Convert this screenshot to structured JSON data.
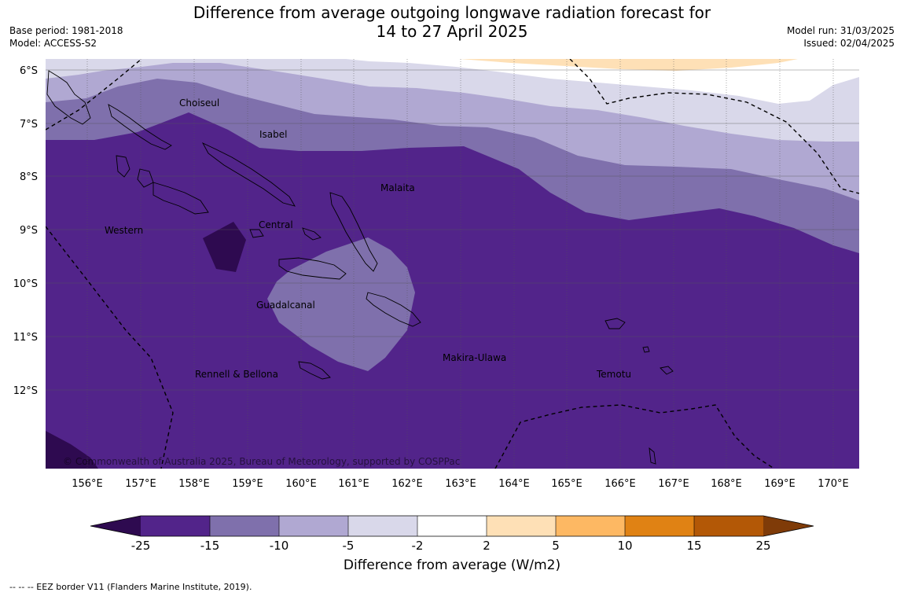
{
  "title_line1": "Difference from average outgoing longwave radiation forecast for",
  "title_line2": "14 to 27 April 2025",
  "meta_left": [
    "Base period: 1981-2018",
    "Model: ACCESS-S2"
  ],
  "meta_right": [
    "Model run: 31/03/2025",
    "Issued: 02/04/2025"
  ],
  "lat_ticks": [
    "6°S",
    "7°S",
    "8°S",
    "9°S",
    "10°S",
    "11°S",
    "12°S"
  ],
  "lon_ticks": [
    "156°E",
    "157°E",
    "158°E",
    "159°E",
    "160°E",
    "161°E",
    "162°E",
    "163°E",
    "164°E",
    "165°E",
    "166°E",
    "167°E",
    "168°E",
    "169°E",
    "170°E"
  ],
  "regions": [
    "Choiseul",
    "Isabel",
    "Malaita",
    "Western",
    "Central",
    "Guadalcanal",
    "Makira-Ulawa",
    "Rennell & Bellona",
    "Temotu"
  ],
  "copyright": "© Commonwealth of Australia 2025, Bureau of Meteorology, supported by COSPPac",
  "colorbar": {
    "ticks": [
      "-25",
      "-15",
      "-10",
      "-5",
      "-2",
      "2",
      "5",
      "10",
      "15",
      "25"
    ],
    "colors": [
      "#2e0a50",
      "#52248a",
      "#7f70ac",
      "#b0a8d2",
      "#d9d8ea",
      "#ffffff",
      "#fee0b6",
      "#fdb863",
      "#e08214",
      "#b35806",
      "#7f3b08"
    ],
    "label": "Difference from average (W/m2)"
  },
  "footer": "--  --  -- EEZ border V11 (Flanders Marine Institute, 2019)."
}
